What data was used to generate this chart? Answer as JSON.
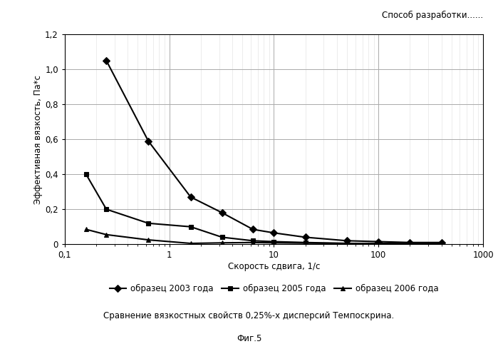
{
  "series_2003": {
    "x": [
      0.16,
      0.25,
      0.63,
      1.6,
      3.2,
      6.3,
      10,
      20,
      50,
      100,
      200,
      400
    ],
    "y": [
      null,
      1.05,
      0.59,
      0.27,
      0.18,
      0.085,
      0.065,
      0.04,
      0.02,
      0.015,
      0.01,
      0.01
    ],
    "label": "образец 2003 года",
    "marker": "D",
    "markersize": 5
  },
  "series_2005": {
    "x": [
      0.16,
      0.25,
      0.63,
      1.6,
      3.2,
      6.3,
      10,
      20,
      50,
      100,
      200,
      400
    ],
    "y": [
      0.4,
      0.2,
      0.12,
      0.1,
      0.04,
      0.02,
      0.015,
      0.01,
      0.005,
      0.004,
      0.003,
      0.003
    ],
    "label": "образец 2005 года",
    "marker": "s",
    "markersize": 5
  },
  "series_2006": {
    "x": [
      0.16,
      0.25,
      0.63,
      1.6,
      3.2,
      6.3,
      10,
      20,
      50,
      100,
      200,
      400
    ],
    "y": [
      0.085,
      0.055,
      0.025,
      0.005,
      0.008,
      0.01,
      0.008,
      0.006,
      0.005,
      0.004,
      0.003,
      0.003
    ],
    "label": "образец 2006 года",
    "marker": "^",
    "markersize": 5
  },
  "xlabel": "Скорость сдвига, 1/с",
  "ylabel": "Эффективная вязкость, Па*с",
  "title_top_right": "Способ разработки......",
  "caption": "Сравнение вязкостных свойств 0,25%-х дисперсий Темпоскрина.",
  "fig_label": "Фиг.5",
  "xlim": [
    0.1,
    1000
  ],
  "ylim": [
    0,
    1.2
  ],
  "yticks": [
    0,
    0.2,
    0.4,
    0.6,
    0.8,
    1.0,
    1.2
  ],
  "background_color": "#ffffff",
  "major_grid_color": "#aaaaaa",
  "minor_grid_color": "#dddddd",
  "line_color": "#000000"
}
